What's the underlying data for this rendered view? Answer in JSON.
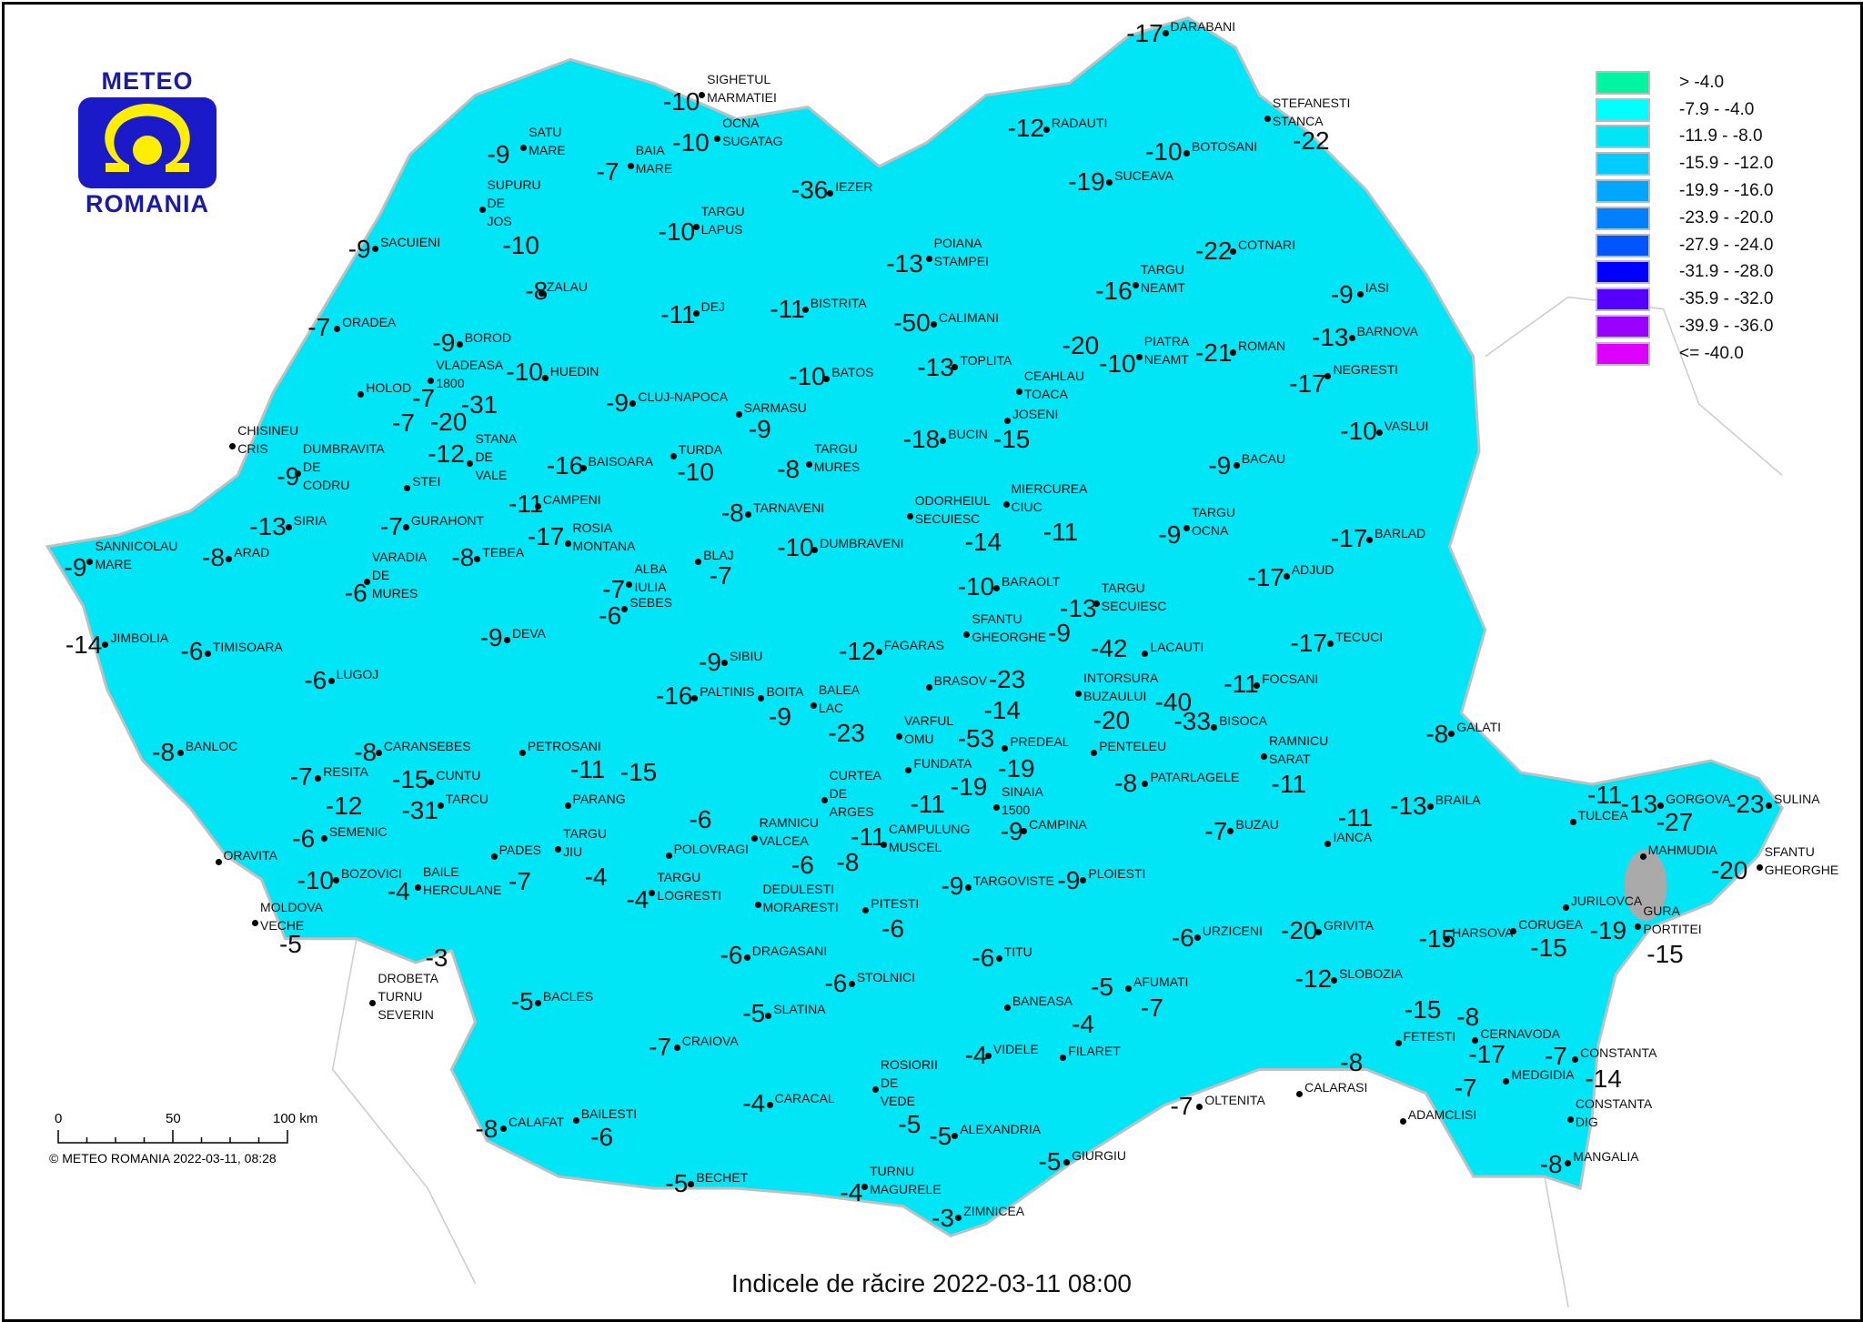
{
  "title": "Indicele de răcire 2022-03-11 08:00",
  "logo": {
    "top": "METEO",
    "bottom": "ROMANIA"
  },
  "copyright": "© METEO ROMANIA 2022-03-11, 08:28",
  "scale_bar": {
    "labels": [
      "0",
      "50",
      "100 km"
    ]
  },
  "legend": [
    {
      "label": "> -4.0",
      "color": "#00f5a3"
    },
    {
      "label": "-7.9 - -4.0",
      "color": "#00ffff"
    },
    {
      "label": "-11.9 - -8.0",
      "color": "#00e6f7"
    },
    {
      "label": "-15.9 - -12.0",
      "color": "#00ccff"
    },
    {
      "label": "-19.9 - -16.0",
      "color": "#00a6ff"
    },
    {
      "label": "-23.9 - -20.0",
      "color": "#0080ff"
    },
    {
      "label": "-27.9 - -24.0",
      "color": "#0055ff"
    },
    {
      "label": "-31.9 - -28.0",
      "color": "#0000ff"
    },
    {
      "label": "-35.9 - -32.0",
      "color": "#5500ff"
    },
    {
      "label": "-39.9 - -36.0",
      "color": "#9900ff"
    },
    {
      "label": "<= -40.0",
      "color": "#dd00ff"
    }
  ],
  "stations": [
    {
      "v": "-17",
      "n": "DARABANI"
    },
    {
      "v": "-10",
      "n": "SIGHETUL\nMARMATIEI"
    },
    {
      "v": "-10",
      "n": "OCNA\nSUGATAG"
    },
    {
      "v": "-9",
      "n": "SATU\nMARE"
    },
    {
      "v": "-7",
      "n": "BAIA\nMARE"
    },
    {
      "v": "-12",
      "n": "RADAUTI"
    },
    {
      "v": "-22",
      "n": "STEFANESTI\nSTANCA"
    },
    {
      "v": "-10",
      "n": "BOTOSANI"
    },
    {
      "v": "-19",
      "n": "SUCEAVA"
    },
    {
      "v": "-36",
      "n": "IEZER"
    },
    {
      "v": "-10",
      "n": "SUPURU\nDE\nJOS"
    },
    {
      "v": "-10",
      "n": "TARGU\nLAPUS"
    },
    {
      "v": "-9",
      "n": "SACUIENI"
    },
    {
      "v": "-13",
      "n": "POIANA\nSTAMPEI"
    },
    {
      "v": "-22",
      "n": "COTNARI"
    },
    {
      "v": "-16",
      "n": "TARGU\nNEAMT"
    },
    {
      "v": "-8",
      "n": "ZALAU"
    },
    {
      "v": "-9",
      "n": "IASI"
    },
    {
      "v": "-11",
      "n": "DEJ"
    },
    {
      "v": "-11",
      "n": "BISTRITA"
    },
    {
      "v": "-50",
      "n": "CALIMANI"
    },
    {
      "v": "-7",
      "n": "ORADEA"
    },
    {
      "v": "-13",
      "n": "BARNOVA"
    },
    {
      "v": "-20",
      "n": "CEAHLAU\nTOACA"
    },
    {
      "v": "-10",
      "n": "PIATRA\nNEAMT"
    },
    {
      "v": "-21",
      "n": "ROMAN"
    },
    {
      "v": "-9",
      "n": "BOROD"
    },
    {
      "v": "-31",
      "n": "VLADEASA\n1800"
    },
    {
      "v": "-10",
      "n": "HUEDIN"
    },
    {
      "v": "-10",
      "n": "BATOS"
    },
    {
      "v": "-13",
      "n": "TOPLITA"
    },
    {
      "v": "-17",
      "n": "NEGRESTI"
    },
    {
      "v": "-7",
      "n": "HOLOD"
    },
    {
      "v": "-9",
      "n": "CLUJ-NAPOCA"
    },
    {
      "v": "-9",
      "n": "SARMASU"
    },
    {
      "v": "-7",
      "n": "DUMBRAVITA\nDE\nCODRU"
    },
    {
      "v": "-20",
      "n": "STANA\nDE\nVALE"
    },
    {
      "v": "-15",
      "n": "JOSENI"
    },
    {
      "v": "-18",
      "n": "BUCIN"
    },
    {
      "v": "-10",
      "n": "VASLUI"
    },
    {
      "v": "-9",
      "n": "CHISINEU\nCRIS"
    },
    {
      "v": "-12",
      "n": "STEI"
    },
    {
      "v": "-16",
      "n": "BAISOARA"
    },
    {
      "v": "-10",
      "n": "TURDA"
    },
    {
      "v": "-8",
      "n": "TARGU\nMURES"
    },
    {
      "v": "-9",
      "n": "BACAU"
    },
    {
      "v": "-11",
      "n": "MIERCUREA\nCIUC"
    },
    {
      "v": "-11",
      "n": "CAMPENI"
    },
    {
      "v": "-17",
      "n": "ROSIA\nMONTANA"
    },
    {
      "v": "-13",
      "n": "SIRIA"
    },
    {
      "v": "-7",
      "n": "GURAHONT"
    },
    {
      "v": "-8",
      "n": "TARNAVENI"
    },
    {
      "v": "-14",
      "n": "ODORHEIUL\nSECUIESC"
    },
    {
      "v": "-9",
      "n": "TARGU\nOCNA"
    },
    {
      "v": "-9",
      "n": "SANNICOLAU\nMARE"
    },
    {
      "v": "-8",
      "n": "ARAD"
    },
    {
      "v": "-6",
      "n": "VARADIA\nDE\nMURES"
    },
    {
      "v": "-8",
      "n": "TEBEA"
    },
    {
      "v": "-7",
      "n": "ALBA\nIULIA"
    },
    {
      "v": "-7",
      "n": "BLAJ"
    },
    {
      "v": "-10",
      "n": "DUMBRAVENI"
    },
    {
      "v": "-17",
      "n": "BARLAD"
    },
    {
      "v": "-17",
      "n": "ADJUD"
    },
    {
      "v": "-10",
      "n": "BARAOLT"
    },
    {
      "v": "-6",
      "n": "SEBES"
    },
    {
      "v": "-13",
      "n": "TARGU\nSECUIESC"
    },
    {
      "v": "-14",
      "n": "JIMBOLIA"
    },
    {
      "v": "-6",
      "n": "TIMISOARA"
    },
    {
      "v": "-9",
      "n": "DEVA"
    },
    {
      "v": "-9",
      "n": "SFANTU\nGHEORGHE"
    },
    {
      "v": "-42",
      "n": "LACAUTI"
    },
    {
      "v": "-17",
      "n": "TECUCI"
    },
    {
      "v": "-9",
      "n": "SIBIU"
    },
    {
      "v": "-12",
      "n": "FAGARAS"
    },
    {
      "v": "-6",
      "n": "LUGOJ"
    },
    {
      "v": "-23",
      "n": "BRASOV"
    },
    {
      "v": "-20",
      "n": "INTORSURA\nBUZAULUI"
    },
    {
      "v": "-11",
      "n": "FOCSANI"
    },
    {
      "v": "-16",
      "n": "PALTINIS"
    },
    {
      "v": "-9",
      "n": "BOITA"
    },
    {
      "v": "-23",
      "n": "BALEA\nLAC"
    },
    {
      "v": "-40",
      "n": "PENTELEU"
    },
    {
      "v": "-33",
      "n": "BISOCA"
    },
    {
      "v": "-14",
      "n": "VARFUL\nOMU"
    },
    {
      "v": "-8",
      "n": "BANLOC"
    },
    {
      "v": "-8",
      "n": "CARANSEBES"
    },
    {
      "v": "-19",
      "n": "FUNDATA"
    },
    {
      "v": "-53",
      "n": ""
    },
    {
      "v": "-19",
      "n": "PREDEAL"
    },
    {
      "v": "",
      "n": "SINAIA\n1500"
    },
    {
      "v": "-11",
      "n": "RAMNICU\nSARAT"
    },
    {
      "v": "-8",
      "n": "GALATI"
    },
    {
      "v": "-11",
      "n": "PETROSANI"
    },
    {
      "v": "-15",
      "n": "PARANG"
    },
    {
      "v": "-7",
      "n": "RESITA"
    },
    {
      "v": "-15",
      "n": "CUNTU"
    },
    {
      "v": "-31",
      "n": "TARCU"
    },
    {
      "v": "-12",
      "n": "SEMENIC"
    },
    {
      "v": "-8",
      "n": "PATARLAGELE"
    },
    {
      "v": "-11",
      "n": "CURTEA\nDE\nARGES"
    },
    {
      "v": "-11",
      "n": "CAMPULUNG\nMUSCEL"
    },
    {
      "v": "-13",
      "n": "BRAILA"
    },
    {
      "v": "-11",
      "n": "TULCEA"
    },
    {
      "v": "-13",
      "n": "GORGOVA"
    },
    {
      "v": "-27",
      "n": "MAHMUDIA"
    },
    {
      "v": "-23",
      "n": "SULINA"
    },
    {
      "v": "-11",
      "n": "IANCA"
    },
    {
      "v": "-7",
      "n": "BUZAU"
    },
    {
      "v": "-9",
      "n": "CAMPINA"
    },
    {
      "v": "-6",
      "n": "POLOVRAGI"
    },
    {
      "v": "-4",
      "n": "TARGU\nJIU"
    },
    {
      "v": "-6",
      "n": "RAMNICU\nVALCEA"
    },
    {
      "v": "-8",
      "n": "DEDULESTI\nMORARESTI"
    },
    {
      "v": "-6",
      "n": "ORAVITA"
    },
    {
      "v": "-7",
      "n": "PADES"
    },
    {
      "v": "-20",
      "n": "SFANTU\nGHEORGHE"
    },
    {
      "v": "-10",
      "n": "BOZOVICI"
    },
    {
      "v": "-4",
      "n": "BAILE\nHERCULANE"
    },
    {
      "v": "-4",
      "n": "TARGU\nLOGRESTI"
    },
    {
      "v": "-9",
      "n": "TARGOVISTE"
    },
    {
      "v": "-9",
      "n": "PLOIESTI"
    },
    {
      "v": "-5",
      "n": "MOLDOVA\nVECHE"
    },
    {
      "v": "-19",
      "n": "JURILOVCA"
    },
    {
      "v": "-15",
      "n": "GURA\nPORTITEI"
    },
    {
      "v": "-6",
      "n": "PITESTI"
    },
    {
      "v": "-20",
      "n": "GRIVITA"
    },
    {
      "v": "-6",
      "n": "URZICENI"
    },
    {
      "v": "-15",
      "n": "HARSOVA"
    },
    {
      "v": "-15",
      "n": "CORUGEA"
    },
    {
      "v": "-3",
      "n": "DROBETA\nTURNU\nSEVERIN"
    },
    {
      "v": "-6",
      "n": "DRAGASANI"
    },
    {
      "v": "-6",
      "n": "TITU"
    },
    {
      "v": "-12",
      "n": "SLOBOZIA"
    },
    {
      "v": "-6",
      "n": "STOLNICI"
    },
    {
      "v": "-5",
      "n": "BANEASA"
    },
    {
      "v": "-7",
      "n": "AFUMATI"
    },
    {
      "v": "-5",
      "n": "BACLES"
    },
    {
      "v": "-5",
      "n": "SLATINA"
    },
    {
      "v": "-15",
      "n": "FETESTI"
    },
    {
      "v": "-8",
      "n": "CERNAVODA"
    },
    {
      "v": "-4",
      "n": "FILARET"
    },
    {
      "v": "-7",
      "n": "CRAIOVA"
    },
    {
      "v": "-17",
      "n": "MEDGIDIA"
    },
    {
      "v": "-7",
      "n": "CONSTANTA"
    },
    {
      "v": "-14",
      "n": "CONSTANTA\nDIG"
    },
    {
      "v": "-4",
      "n": "VIDELE"
    },
    {
      "v": "-5",
      "n": "ROSIORII\nDE\nVEDE"
    },
    {
      "v": "-8",
      "n": "CALARASI"
    },
    {
      "v": "-7",
      "n": "ADAMCLISI"
    },
    {
      "v": "-4",
      "n": "CARACAL"
    },
    {
      "v": "-7",
      "n": "OLTENITA"
    },
    {
      "v": "-8",
      "n": "CALAFAT"
    },
    {
      "v": "-6",
      "n": "BAILESTI"
    },
    {
      "v": "-5",
      "n": "ALEXANDRIA"
    },
    {
      "v": "-5",
      "n": "GIURGIU"
    },
    {
      "v": "-8",
      "n": "MANGALIA"
    },
    {
      "v": "-5",
      "n": "BECHET"
    },
    {
      "v": "-4",
      "n": "TURNU\nMAGURELE"
    },
    {
      "v": "-3",
      "n": "ZIMNICEA"
    }
  ]
}
